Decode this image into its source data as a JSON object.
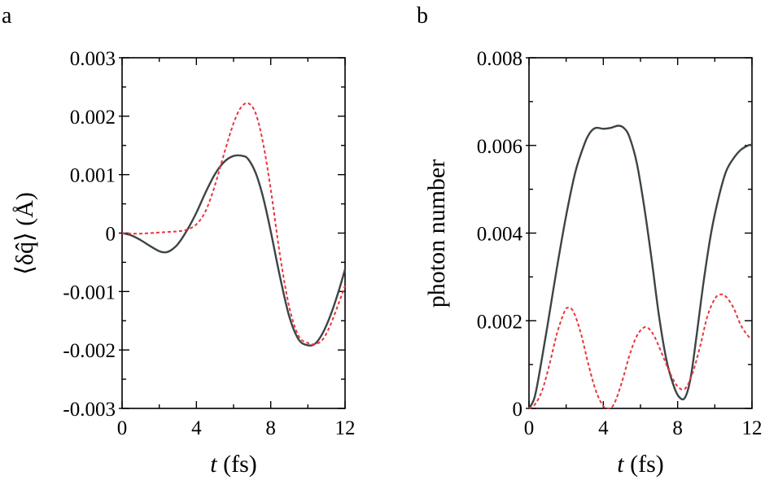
{
  "figure": {
    "panels": [
      {
        "letter": "a",
        "ylabel": "⟨δq̂⟩ (Å)",
        "xlabel_var": "t",
        "xlabel_unit": " (fs)"
      },
      {
        "letter": "b",
        "ylabel": "photon number",
        "xlabel_var": "t",
        "xlabel_unit": " (fs)"
      }
    ]
  },
  "colors": {
    "series_1": "#3d4446",
    "series_2": "#e8363c"
  },
  "chart_data": [
    {
      "type": "line",
      "panel": "a",
      "title": "",
      "xlabel": "t (fs)",
      "ylabel": "⟨δq̂⟩ (Å)",
      "xlim": [
        0,
        12
      ],
      "ylim": [
        -0.003,
        0.003
      ],
      "xticks": [
        0,
        4,
        8,
        12
      ],
      "xtick_labels": [
        "0",
        "4",
        "8",
        "12"
      ],
      "yticks": [
        0.003,
        0.002,
        0.001,
        0,
        -0.001,
        -0.002,
        -0.003
      ],
      "ytick_labels": [
        "0.003",
        "0.002",
        "0.001",
        "0",
        "-0.001",
        "-0.002",
        "-0.003"
      ],
      "x_minor_step": 2,
      "y_minor_step": 0.0005,
      "grid": false,
      "series": [
        {
          "name": "solid",
          "style": "solid",
          "x": [
            0,
            0.5,
            1,
            1.5,
            2,
            2.3,
            2.6,
            3,
            3.5,
            4,
            4.5,
            5,
            5.5,
            6,
            6.5,
            6.8,
            7.2,
            7.6,
            8,
            8.5,
            9,
            9.5,
            10,
            10.4,
            10.8,
            11.2,
            11.6,
            12
          ],
          "y": [
            0,
            -4e-05,
            -0.00012,
            -0.00022,
            -0.00031,
            -0.00033,
            -0.0003,
            -0.00019,
            5e-05,
            0.00035,
            0.0007,
            0.00101,
            0.00122,
            0.00132,
            0.00132,
            0.00126,
            0.00102,
            0.0006,
            3e-05,
            -0.00075,
            -0.00143,
            -0.00182,
            -0.00192,
            -0.00189,
            -0.00171,
            -0.00142,
            -0.00105,
            -0.00062
          ]
        },
        {
          "name": "dashed",
          "style": "dashed",
          "x": [
            0,
            0.5,
            1,
            1.5,
            2,
            2.5,
            3,
            3.5,
            4,
            4.5,
            5,
            5.5,
            6,
            6.4,
            6.8,
            7.2,
            7.6,
            8,
            8.5,
            9,
            9.5,
            10,
            10.4,
            10.8,
            11.2,
            11.6,
            12
          ],
          "y": [
            0,
            -1e-05,
            -1e-05,
            0,
            1e-05,
            2e-05,
            3e-05,
            6e-05,
            0.00015,
            0.00038,
            0.00082,
            0.00137,
            0.00188,
            0.00215,
            0.00222,
            0.00204,
            0.00152,
            0.00075,
            -0.00038,
            -0.00127,
            -0.00176,
            -0.00188,
            -0.0019,
            -0.00182,
            -0.00158,
            -0.00125,
            -0.0009
          ]
        }
      ]
    },
    {
      "type": "line",
      "panel": "b",
      "title": "",
      "xlabel": "t (fs)",
      "ylabel": "photon number",
      "xlim": [
        0,
        12
      ],
      "ylim": [
        0,
        0.008
      ],
      "xticks": [
        0,
        4,
        8,
        12
      ],
      "xtick_labels": [
        "0",
        "4",
        "8",
        "12"
      ],
      "yticks": [
        0,
        0.002,
        0.004,
        0.006,
        0.008
      ],
      "ytick_labels": [
        "0",
        "0.002",
        "0.004",
        "0.006",
        "0.008"
      ],
      "x_minor_step": 2,
      "y_minor_step": 0.001,
      "grid": false,
      "series": [
        {
          "name": "solid",
          "style": "solid",
          "x": [
            0,
            0.3,
            0.6,
            1,
            1.5,
            2,
            2.5,
            3,
            3.3,
            3.6,
            4,
            4.4,
            4.8,
            5.1,
            5.4,
            5.8,
            6.2,
            6.6,
            7,
            7.4,
            7.8,
            8.1,
            8.4,
            8.7,
            9,
            9.4,
            9.8,
            10.2,
            10.6,
            11,
            11.4,
            11.8,
            12
          ],
          "y": [
            0,
            0.00025,
            0.0009,
            0.0019,
            0.0032,
            0.0044,
            0.0054,
            0.00605,
            0.0063,
            0.0064,
            0.00638,
            0.0064,
            0.00645,
            0.0064,
            0.0062,
            0.0056,
            0.0046,
            0.0034,
            0.0021,
            0.0011,
            0.0005,
            0.00025,
            0.00025,
            0.0007,
            0.0016,
            0.0029,
            0.004,
            0.0048,
            0.0054,
            0.0057,
            0.0059,
            0.006,
            0.00602
          ]
        },
        {
          "name": "dashed",
          "style": "dashed",
          "x": [
            0,
            0.3,
            0.7,
            1.1,
            1.5,
            1.9,
            2.1,
            2.4,
            2.8,
            3.2,
            3.6,
            4,
            4.3,
            4.6,
            5,
            5.4,
            5.8,
            6.2,
            6.5,
            6.8,
            7.2,
            7.6,
            8,
            8.4,
            8.8,
            9.2,
            9.6,
            10,
            10.3,
            10.6,
            11,
            11.4,
            11.8,
            12
          ],
          "y": [
            0,
            8e-05,
            0.0004,
            0.001,
            0.0017,
            0.0022,
            0.0023,
            0.0022,
            0.0017,
            0.001,
            0.0004,
            5e-05,
            -1e-05,
            0.00012,
            0.0006,
            0.0012,
            0.00165,
            0.00185,
            0.0018,
            0.0016,
            0.0012,
            0.0008,
            0.0005,
            0.00045,
            0.0008,
            0.0014,
            0.0021,
            0.0025,
            0.0026,
            0.00255,
            0.0023,
            0.0019,
            0.00165,
            0.0016
          ]
        }
      ]
    }
  ]
}
